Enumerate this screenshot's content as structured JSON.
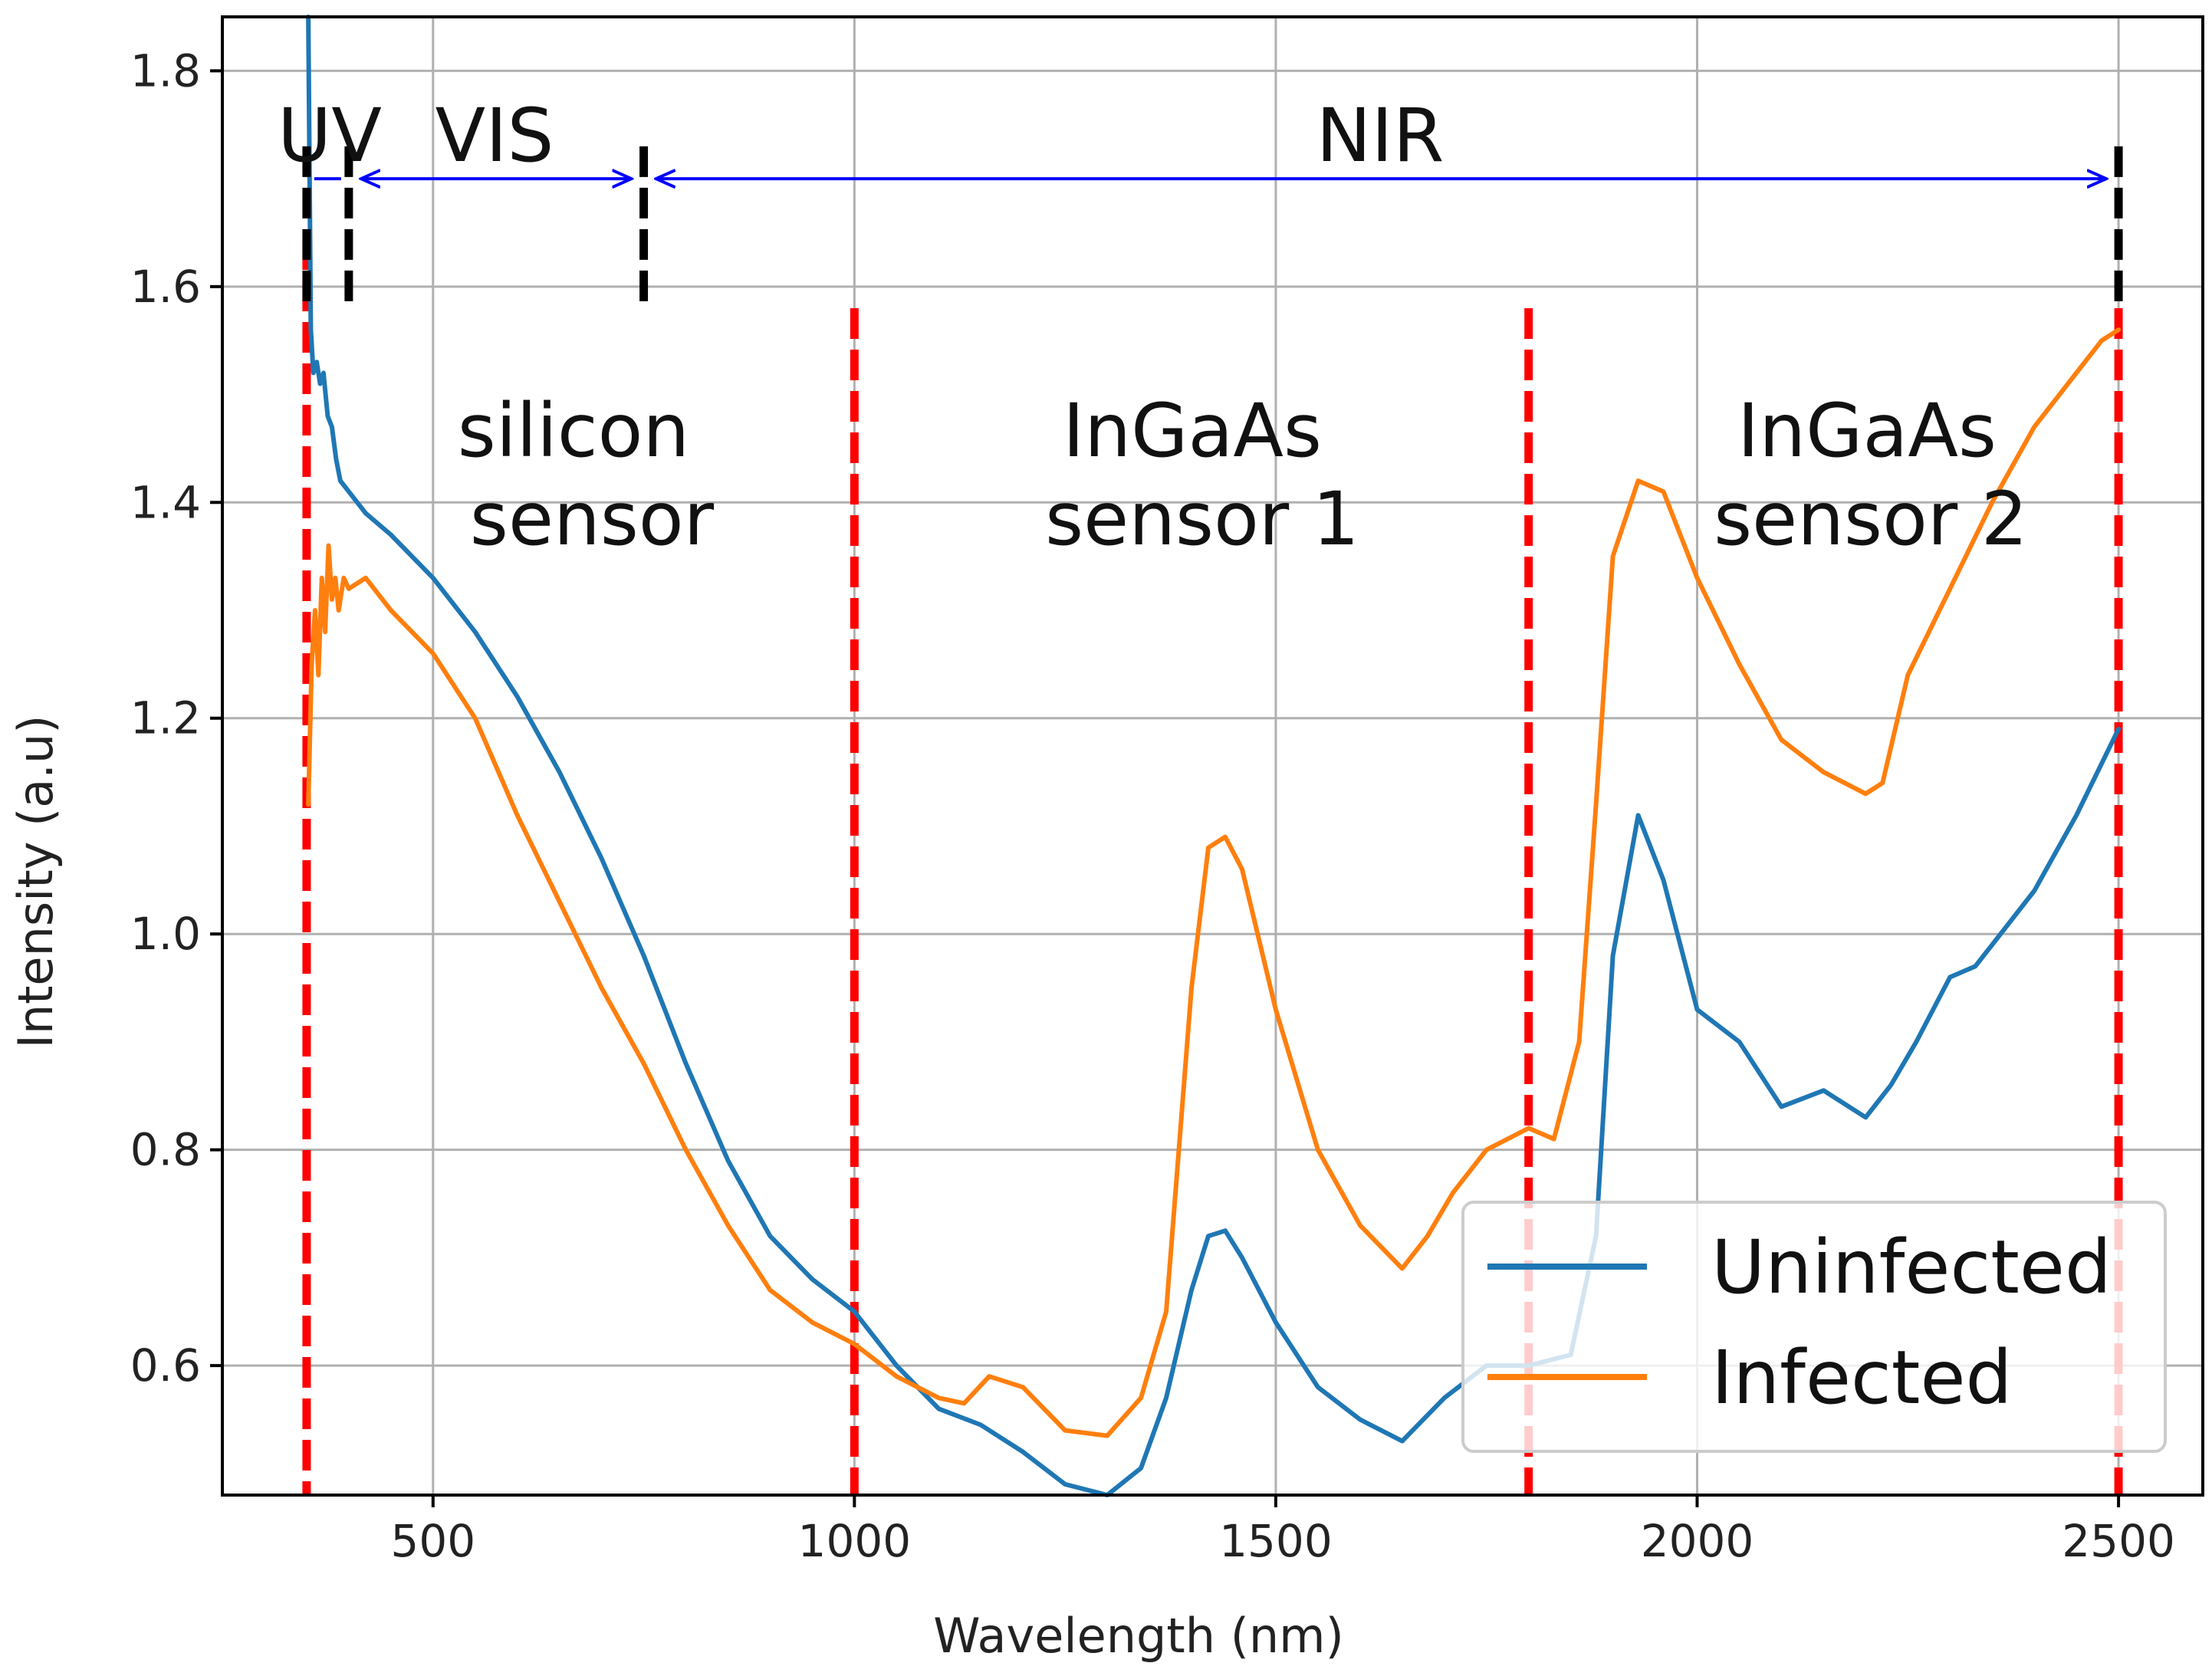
{
  "chart_data": {
    "type": "line",
    "title": "",
    "xlabel": "Wavelength (nm)",
    "ylabel": "Intensity (a.u)",
    "xlim": [
      250,
      2600
    ],
    "ylim": [
      0.48,
      1.85
    ],
    "grid": true,
    "x_ticks": [
      500,
      1000,
      1500,
      2000,
      2500
    ],
    "x_tick_labels": [
      "500",
      "1000",
      "1500",
      "2000",
      "2500"
    ],
    "y_ticks": [
      0.6,
      0.8,
      1.0,
      1.2,
      1.4,
      1.6,
      1.8
    ],
    "y_tick_labels": [
      "0.6",
      "0.8",
      "1.0",
      "1.2",
      "1.4",
      "1.6",
      "1.8"
    ],
    "legend_position": "bottom-right",
    "series": [
      {
        "name": "Uninfected",
        "color": "#1f77b4",
        "x": [
          352,
          355,
          358,
          362,
          366,
          370,
          375,
          380,
          385,
          390,
          400,
          420,
          450,
          500,
          550,
          600,
          650,
          700,
          750,
          800,
          850,
          900,
          950,
          1000,
          1050,
          1100,
          1150,
          1200,
          1250,
          1300,
          1340,
          1370,
          1400,
          1420,
          1440,
          1460,
          1500,
          1550,
          1600,
          1650,
          1700,
          1750,
          1800,
          1850,
          1880,
          1900,
          1930,
          1960,
          2000,
          2050,
          2100,
          2150,
          2200,
          2230,
          2260,
          2300,
          2330,
          2350,
          2400,
          2450,
          2500
        ],
        "y": [
          1.85,
          1.56,
          1.52,
          1.53,
          1.51,
          1.52,
          1.48,
          1.47,
          1.44,
          1.42,
          1.41,
          1.39,
          1.37,
          1.33,
          1.28,
          1.22,
          1.15,
          1.07,
          0.98,
          0.88,
          0.79,
          0.72,
          0.68,
          0.65,
          0.6,
          0.56,
          0.545,
          0.52,
          0.49,
          0.48,
          0.505,
          0.57,
          0.67,
          0.72,
          0.725,
          0.7,
          0.64,
          0.58,
          0.55,
          0.53,
          0.57,
          0.6,
          0.6,
          0.61,
          0.72,
          0.98,
          1.11,
          1.05,
          0.93,
          0.9,
          0.84,
          0.855,
          0.83,
          0.86,
          0.9,
          0.96,
          0.97,
          0.99,
          1.04,
          1.11,
          1.19
        ]
      },
      {
        "name": "Infected",
        "color": "#ff7f0e",
        "x": [
          352,
          356,
          360,
          364,
          368,
          372,
          376,
          380,
          384,
          388,
          394,
          400,
          420,
          450,
          500,
          550,
          600,
          650,
          700,
          750,
          800,
          850,
          900,
          950,
          1000,
          1050,
          1100,
          1130,
          1160,
          1200,
          1250,
          1300,
          1340,
          1370,
          1400,
          1420,
          1440,
          1460,
          1500,
          1550,
          1600,
          1650,
          1680,
          1710,
          1750,
          1800,
          1830,
          1860,
          1880,
          1900,
          1930,
          1960,
          2000,
          2050,
          2100,
          2150,
          2200,
          2220,
          2250,
          2300,
          2350,
          2400,
          2450,
          2480,
          2500
        ],
        "y": [
          1.12,
          1.25,
          1.3,
          1.24,
          1.33,
          1.28,
          1.36,
          1.31,
          1.33,
          1.3,
          1.33,
          1.32,
          1.33,
          1.3,
          1.26,
          1.2,
          1.11,
          1.03,
          0.95,
          0.88,
          0.8,
          0.73,
          0.67,
          0.64,
          0.62,
          0.59,
          0.57,
          0.565,
          0.59,
          0.58,
          0.54,
          0.535,
          0.57,
          0.65,
          0.95,
          1.08,
          1.09,
          1.06,
          0.93,
          0.8,
          0.73,
          0.69,
          0.72,
          0.76,
          0.8,
          0.82,
          0.81,
          0.9,
          1.12,
          1.35,
          1.42,
          1.41,
          1.33,
          1.25,
          1.18,
          1.15,
          1.13,
          1.14,
          1.24,
          1.32,
          1.4,
          1.47,
          1.52,
          1.55,
          1.56
        ]
      }
    ],
    "sensor_boundaries": [
      350,
      1000,
      1800,
      2500
    ],
    "band_markers": [
      350,
      400,
      750,
      2500
    ],
    "band_arrows": [
      {
        "from": 400,
        "to": 750,
        "label": "VIS"
      },
      {
        "from": 750,
        "to": 2500,
        "label": "NIR"
      }
    ],
    "band_labels": {
      "uv": "UV",
      "vis": "VIS",
      "nir": "NIR"
    },
    "sensor_labels": {
      "silicon_line1": "silicon",
      "silicon_line2": "sensor",
      "ingaas1_line1": "InGaAs",
      "ingaas1_line2": "sensor 1",
      "ingaas2_line1": "InGaAs",
      "ingaas2_line2": "sensor 2"
    },
    "legend": {
      "uninfected": "Uninfected",
      "infected": "Infected"
    }
  }
}
